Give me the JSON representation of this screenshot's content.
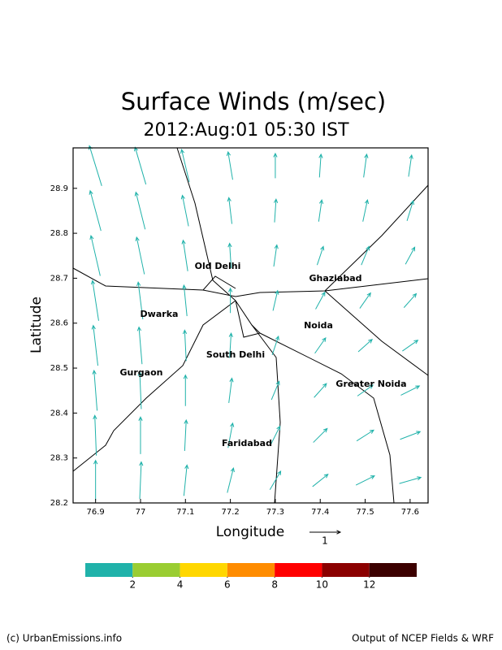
{
  "chart_data": {
    "type": "quiver",
    "title": "Surface Winds (m/sec)",
    "subtitle": "2012:Aug:01 05:30 IST",
    "xlabel": "Longitude",
    "ylabel": "Latitude",
    "xlim": [
      76.85,
      77.64
    ],
    "ylim": [
      28.2,
      28.99
    ],
    "xticks": [
      76.9,
      77,
      77.1,
      77.2,
      77.3,
      77.4,
      77.5,
      77.6
    ],
    "yticks": [
      28.2,
      28.3,
      28.4,
      28.5,
      28.6,
      28.7,
      28.8,
      28.9
    ],
    "color": "#20b2aa",
    "x": [
      76.9,
      77.0,
      77.1,
      77.2,
      77.3,
      77.4,
      77.5,
      77.6
    ],
    "y": [
      28.25,
      28.35,
      28.45,
      28.55,
      28.65,
      28.75,
      28.85,
      28.95
    ],
    "u": [
      [
        0.0,
        0.05,
        0.1,
        0.2,
        0.35,
        0.5,
        0.6,
        0.7
      ],
      [
        -0.05,
        0,
        0.05,
        0.15,
        0.3,
        0.45,
        0.55,
        0.65
      ],
      [
        -0.1,
        -0.05,
        0,
        0.1,
        0.25,
        0.4,
        0.5,
        0.6
      ],
      [
        -0.15,
        -0.1,
        -0.05,
        0.05,
        0.2,
        0.35,
        0.45,
        0.5
      ],
      [
        -0.2,
        -0.15,
        -0.1,
        0,
        0.15,
        0.3,
        0.35,
        0.4
      ],
      [
        -0.3,
        -0.25,
        -0.15,
        -0.05,
        0.1,
        0.2,
        0.25,
        0.3
      ],
      [
        -0.35,
        -0.3,
        -0.2,
        -0.1,
        0.05,
        0.1,
        0.15,
        0.2
      ],
      [
        -0.4,
        -0.35,
        -0.25,
        -0.15,
        0,
        0.05,
        0.1,
        0.1
      ]
    ],
    "v": [
      [
        1.3,
        1.2,
        1.0,
        0.8,
        0.6,
        0.4,
        0.3,
        0.2
      ],
      [
        1.3,
        1.2,
        1.0,
        0.8,
        0.6,
        0.45,
        0.35,
        0.25
      ],
      [
        1.3,
        1.2,
        1.0,
        0.8,
        0.6,
        0.45,
        0.35,
        0.3
      ],
      [
        1.3,
        1.2,
        1.0,
        0.8,
        0.6,
        0.5,
        0.4,
        0.35
      ],
      [
        1.3,
        1.2,
        1.0,
        0.8,
        0.65,
        0.55,
        0.5,
        0.45
      ],
      [
        1.3,
        1.2,
        1.0,
        0.8,
        0.7,
        0.6,
        0.6,
        0.55
      ],
      [
        1.3,
        1.2,
        1.0,
        0.85,
        0.75,
        0.7,
        0.7,
        0.65
      ],
      [
        1.3,
        1.2,
        1.05,
        0.9,
        0.8,
        0.75,
        0.75,
        0.7
      ]
    ],
    "reference_vector": 1,
    "places": [
      "Old Delhi",
      "Ghaziabad",
      "Dwarka",
      "Noida",
      "South Delhi",
      "Gurgaon",
      "Greater Noida",
      "Faridabad"
    ],
    "colorbar": {
      "colors": [
        "#20b2aa",
        "#9acd32",
        "#ffd700",
        "#ff8c00",
        "#ff0000",
        "#8b0000",
        "#3c0000"
      ],
      "ticks": [
        2,
        4,
        6,
        8,
        10,
        12
      ]
    },
    "footer_left": "(c) UrbanEmissions.info",
    "footer_right": "Output of NCEP Fields & WRF"
  }
}
